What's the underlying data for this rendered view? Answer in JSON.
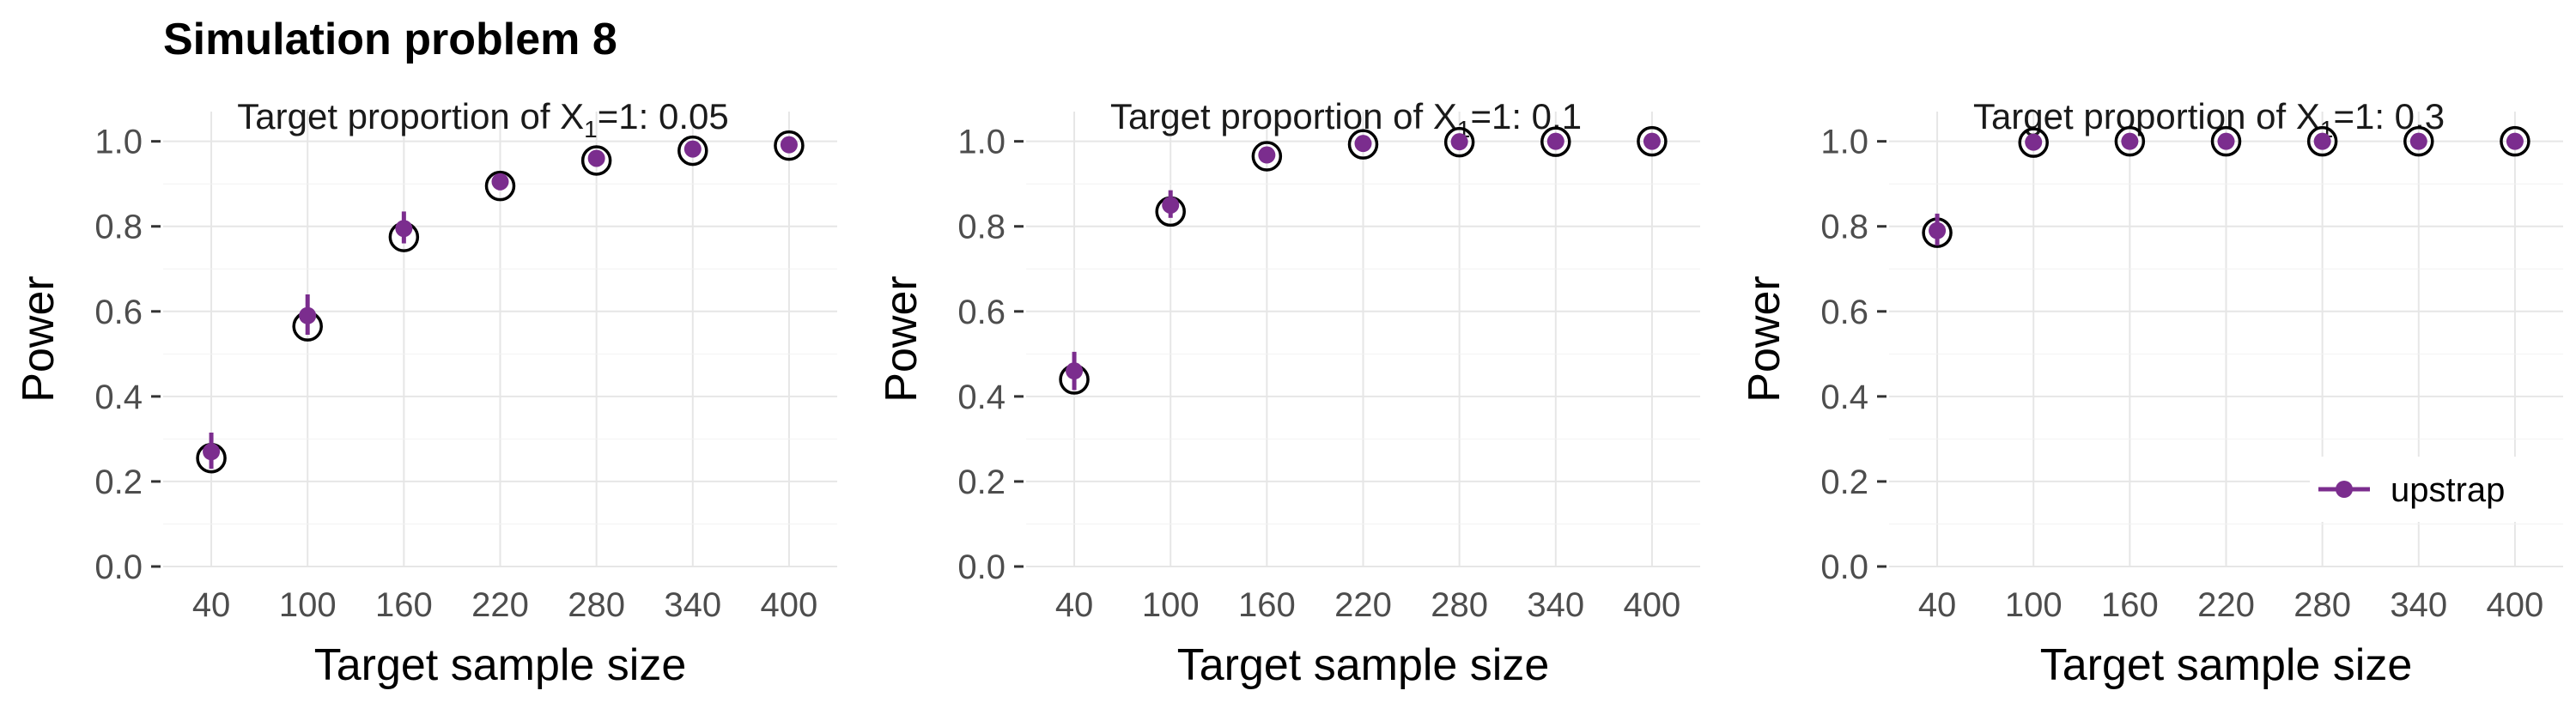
{
  "title": "Simulation problem 8",
  "colors": {
    "upstrap": "#7b2d8e",
    "reference_circle": "#000000",
    "grid": "#e6e6e6"
  },
  "legend": {
    "label": "upstrap",
    "placement": "bottom-right of third panel"
  },
  "chart_data": [
    {
      "type": "scatter",
      "panel_title_prefix": "Target proportion of X",
      "panel_title_sub": "1",
      "panel_title_suffix": "=1:  0.05",
      "xlabel": "Target sample size",
      "ylabel": "Power",
      "x": [
        40,
        100,
        160,
        220,
        280,
        340,
        400
      ],
      "x_ticks": [
        "40",
        "100",
        "160",
        "220",
        "280",
        "340",
        "400"
      ],
      "y_ticks": [
        "0.0",
        "0.2",
        "0.4",
        "0.6",
        "0.8",
        "1.0"
      ],
      "ylim": [
        0,
        1.07
      ],
      "grid": true,
      "series": [
        {
          "name": "reference",
          "marker": "open-circle",
          "values": [
            0.255,
            0.565,
            0.775,
            0.895,
            0.955,
            0.978,
            0.99
          ]
        },
        {
          "name": "upstrap",
          "marker": "filled-circle",
          "values": [
            0.27,
            0.59,
            0.795,
            0.905,
            0.96,
            0.982,
            0.992
          ],
          "lower": [
            0.23,
            0.545,
            0.76,
            0.885,
            0.945,
            0.972,
            0.985
          ],
          "upper": [
            0.315,
            0.64,
            0.835,
            0.92,
            0.97,
            0.99,
            0.997
          ]
        }
      ]
    },
    {
      "type": "scatter",
      "panel_title_prefix": "Target proportion of X",
      "panel_title_sub": "1",
      "panel_title_suffix": "=1:  0.1",
      "xlabel": "Target sample size",
      "ylabel": "Power",
      "x": [
        40,
        100,
        160,
        220,
        280,
        340,
        400
      ],
      "x_ticks": [
        "40",
        "100",
        "160",
        "220",
        "280",
        "340",
        "400"
      ],
      "y_ticks": [
        "0.0",
        "0.2",
        "0.4",
        "0.6",
        "0.8",
        "1.0"
      ],
      "ylim": [
        0,
        1.07
      ],
      "grid": true,
      "series": [
        {
          "name": "reference",
          "marker": "open-circle",
          "values": [
            0.44,
            0.835,
            0.965,
            0.993,
            0.998,
            0.999,
            1.0
          ]
        },
        {
          "name": "upstrap",
          "marker": "filled-circle",
          "values": [
            0.46,
            0.85,
            0.968,
            0.995,
            0.999,
            1.0,
            1.0
          ],
          "lower": [
            0.415,
            0.82,
            0.955,
            0.988,
            0.995,
            0.998,
            0.999
          ],
          "upper": [
            0.505,
            0.885,
            0.98,
            1.0,
            1.0,
            1.0,
            1.0
          ]
        }
      ]
    },
    {
      "type": "scatter",
      "panel_title_prefix": "Target proportion of X",
      "panel_title_sub": "1",
      "panel_title_suffix": "=1:  0.3",
      "xlabel": "Target sample size",
      "ylabel": "Power",
      "x": [
        40,
        100,
        160,
        220,
        280,
        340,
        400
      ],
      "x_ticks": [
        "40",
        "100",
        "160",
        "220",
        "280",
        "340",
        "400"
      ],
      "y_ticks": [
        "0.0",
        "0.2",
        "0.4",
        "0.6",
        "0.8",
        "1.0"
      ],
      "ylim": [
        0,
        1.07
      ],
      "grid": true,
      "series": [
        {
          "name": "reference",
          "marker": "open-circle",
          "values": [
            0.785,
            0.997,
            1.0,
            1.0,
            1.0,
            1.0,
            1.0
          ]
        },
        {
          "name": "upstrap",
          "marker": "filled-circle",
          "values": [
            0.79,
            0.998,
            1.0,
            1.0,
            1.0,
            1.0,
            1.0
          ],
          "lower": [
            0.755,
            0.993,
            0.999,
            1.0,
            1.0,
            1.0,
            1.0
          ],
          "upper": [
            0.83,
            1.0,
            1.0,
            1.0,
            1.0,
            1.0,
            1.0
          ]
        }
      ]
    }
  ]
}
